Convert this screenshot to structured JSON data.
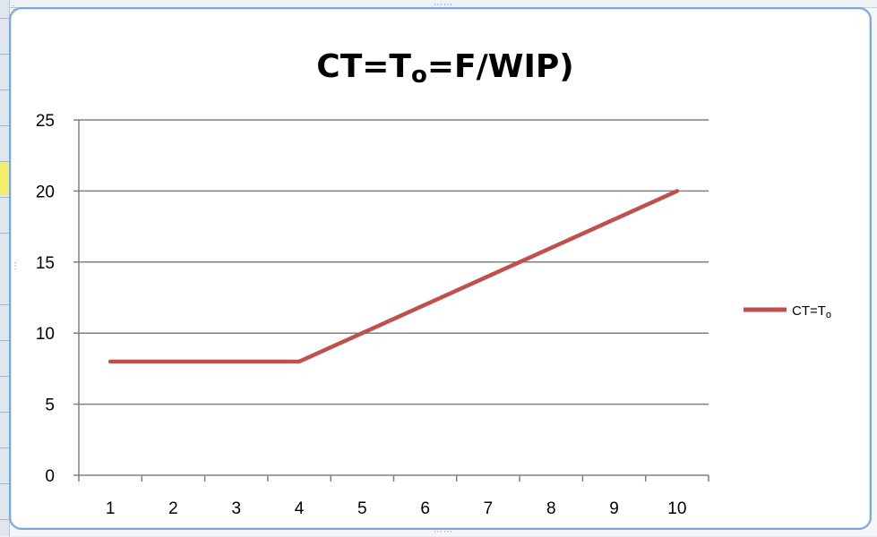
{
  "chart_data": {
    "type": "line",
    "title": "CT=To=F/WIP)",
    "title_parts": {
      "a": "CT=T",
      "sub": "o",
      "b": "=F/WIP)"
    },
    "xlabel": "",
    "ylabel": "",
    "categories": [
      "1",
      "2",
      "3",
      "4",
      "5",
      "6",
      "7",
      "8",
      "9",
      "10"
    ],
    "series": [
      {
        "name": "CT=To",
        "name_parts": {
          "a": "CT=T",
          "sub": "o"
        },
        "values": [
          8,
          8,
          8,
          8,
          10,
          12,
          14,
          16,
          18,
          20
        ],
        "color": "#c0504d"
      }
    ],
    "ylim": [
      0,
      25
    ],
    "yticks": [
      0,
      5,
      10,
      15,
      20,
      25
    ],
    "grid": true,
    "legend_position": "right"
  },
  "colors": {
    "series_line": "#c0504d",
    "gridline": "#808080",
    "chart_border": "#7fa7d8"
  }
}
